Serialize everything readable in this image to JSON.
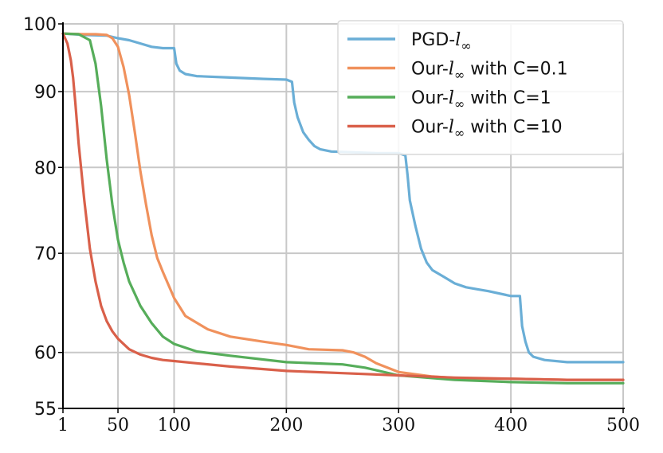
{
  "chart_data": {
    "type": "line",
    "title": "",
    "xlabel": "",
    "ylabel": "",
    "xlim": [
      1,
      500
    ],
    "ylim": [
      55,
      100
    ],
    "y_scale": "log",
    "grid": true,
    "legend_position": "top-right",
    "x_ticks": [
      1,
      50,
      100,
      200,
      300,
      400,
      500
    ],
    "y_ticks": [
      55,
      60,
      70,
      80,
      90,
      100
    ],
    "series": [
      {
        "name_prefix": "PGD-",
        "name_sub": "l",
        "name_subsub": "∞",
        "name_suffix": "",
        "color": "#6aaed6",
        "x": [
          1,
          20,
          40,
          50,
          60,
          70,
          80,
          90,
          100,
          102,
          105,
          110,
          120,
          150,
          180,
          200,
          205,
          207,
          210,
          215,
          220,
          225,
          230,
          240,
          260,
          280,
          300,
          306,
          308,
          310,
          315,
          320,
          325,
          330,
          340,
          350,
          360,
          370,
          380,
          400,
          408,
          409,
          410,
          413,
          416,
          420,
          430,
          450,
          500
        ],
        "y": [
          98.5,
          98.3,
          98.2,
          97.8,
          97.5,
          97.0,
          96.5,
          96.3,
          96.3,
          94.0,
          93.0,
          92.5,
          92.2,
          92.0,
          91.8,
          91.7,
          91.4,
          88.5,
          86.5,
          84.5,
          83.5,
          82.7,
          82.3,
          82.0,
          81.9,
          81.8,
          81.8,
          81.5,
          79.0,
          76.0,
          73.0,
          70.5,
          69.0,
          68.2,
          67.5,
          66.8,
          66.4,
          66.2,
          66.0,
          65.5,
          65.5,
          64.0,
          62.5,
          61.0,
          60.0,
          59.6,
          59.3,
          59.1,
          59.1
        ]
      },
      {
        "name_prefix": "Our-",
        "name_sub": "l",
        "name_subsub": "∞",
        "name_suffix": " with C=0.1",
        "color": "#f0915c",
        "x": [
          1,
          20,
          30,
          40,
          45,
          50,
          55,
          60,
          65,
          70,
          75,
          80,
          85,
          90,
          100,
          110,
          130,
          150,
          180,
          200,
          220,
          250,
          260,
          270,
          280,
          300,
          330,
          360,
          400,
          450,
          500
        ],
        "y": [
          98.5,
          98.4,
          98.4,
          98.3,
          97.8,
          96.5,
          93.5,
          89.5,
          84.5,
          79.5,
          75.5,
          72.0,
          69.5,
          68.0,
          65.3,
          63.5,
          62.2,
          61.5,
          61.0,
          60.7,
          60.3,
          60.2,
          60.0,
          59.6,
          59.0,
          58.2,
          57.8,
          57.6,
          57.6,
          57.5,
          57.5
        ]
      },
      {
        "name_prefix": "Our-",
        "name_sub": "l",
        "name_subsub": "∞",
        "name_suffix": " with C=1",
        "color": "#56ad5a",
        "x": [
          1,
          15,
          25,
          30,
          35,
          40,
          45,
          50,
          55,
          60,
          70,
          80,
          90,
          100,
          120,
          150,
          200,
          250,
          270,
          300,
          350,
          400,
          450,
          500
        ],
        "y": [
          98.5,
          98.4,
          97.5,
          94.0,
          88.0,
          81.0,
          75.5,
          71.5,
          69.0,
          67.0,
          64.5,
          62.8,
          61.5,
          60.8,
          60.1,
          59.7,
          59.1,
          58.9,
          58.6,
          57.9,
          57.5,
          57.3,
          57.2,
          57.2
        ]
      },
      {
        "name_prefix": "Our-",
        "name_sub": "l",
        "name_subsub": "∞",
        "name_suffix": " with C=10",
        "color": "#d9604a",
        "x": [
          1,
          5,
          8,
          10,
          12,
          15,
          20,
          25,
          30,
          35,
          40,
          45,
          50,
          60,
          70,
          80,
          90,
          100,
          120,
          150,
          200,
          250,
          300,
          350,
          400,
          450,
          500
        ],
        "y": [
          98.5,
          97.0,
          94.5,
          92.0,
          88.5,
          83.0,
          76.0,
          70.5,
          67.0,
          64.5,
          63.0,
          62.0,
          61.3,
          60.3,
          59.8,
          59.5,
          59.3,
          59.2,
          59.0,
          58.7,
          58.3,
          58.1,
          57.9,
          57.7,
          57.6,
          57.5,
          57.5
        ]
      }
    ]
  }
}
